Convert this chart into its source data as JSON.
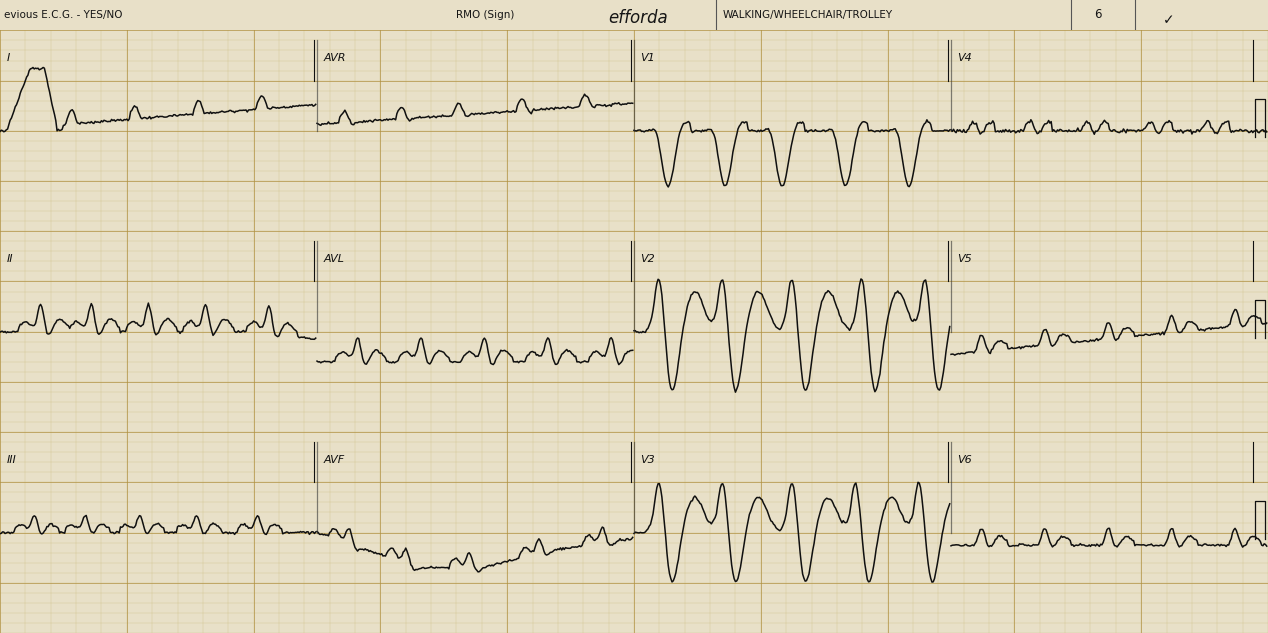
{
  "background_color": "#e8e0c8",
  "paper_color": "#e8e0c8",
  "strip_color": "#ddd5b0",
  "header_bg": "#f0ead8",
  "grid_minor_color": "#c8b878",
  "grid_major_color": "#b09040",
  "line_color": "#101010",
  "header_text_color": "#151515",
  "fig_width": 12.68,
  "fig_height": 6.33,
  "dpi": 100,
  "header_text": "evious E.C.G. - YES/NO",
  "rmo_text": "RMO (Sign)",
  "signature_text": "efforda",
  "walking_text": "WALKING/WHEELCHAIR/TROLLEY",
  "num_6": "6",
  "ecg_linewidth": 1.1,
  "header_fontsize": 7.5,
  "label_fontsize": 8
}
